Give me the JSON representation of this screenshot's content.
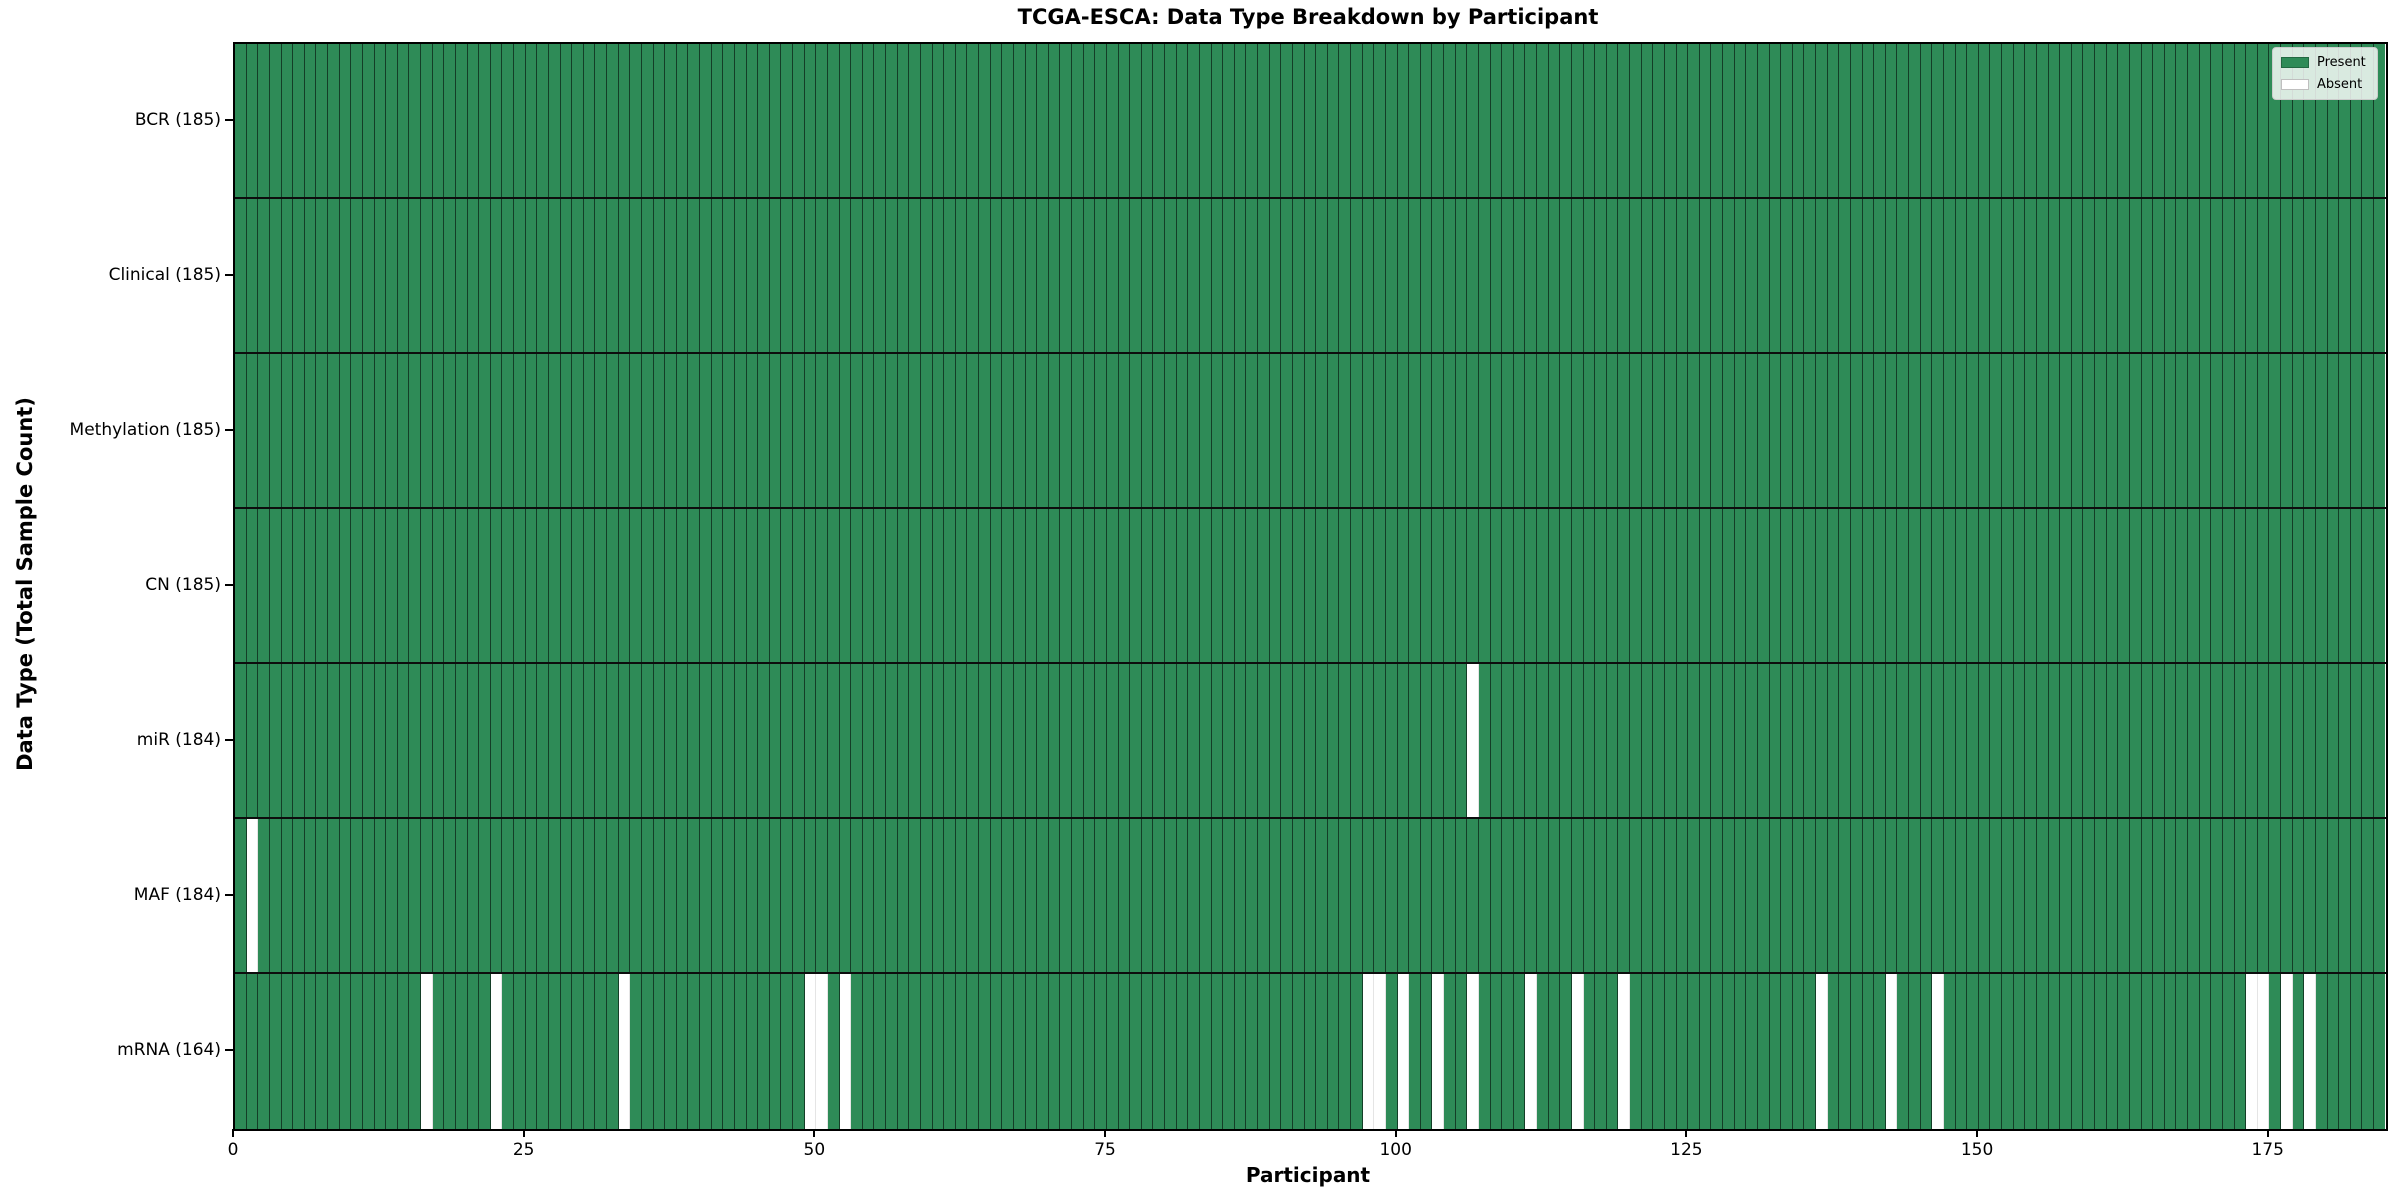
{
  "chart_data": {
    "type": "heatmap",
    "title": "TCGA-ESCA: Data Type Breakdown by Participant",
    "xlabel": "Participant",
    "ylabel": "Data Type (Total Sample Count)",
    "n_participants": 185,
    "x_ticks": [
      0,
      25,
      50,
      75,
      100,
      125,
      150,
      175
    ],
    "x_range": [
      0,
      185
    ],
    "grid": "cell-edges",
    "legend_position": "upper-right",
    "legend": [
      {
        "label": "Present",
        "color": "#2E8B57"
      },
      {
        "label": "Absent",
        "color": "#FFFFFF"
      }
    ],
    "colors": {
      "present": "#2E8B57",
      "absent": "#FFFFFF"
    },
    "rows": [
      {
        "label": "BCR (185)",
        "name": "BCR",
        "total_samples": 185,
        "absent_participants": []
      },
      {
        "label": "Clinical (185)",
        "name": "Clinical",
        "total_samples": 185,
        "absent_participants": []
      },
      {
        "label": "Methylation (185)",
        "name": "Methylation",
        "total_samples": 185,
        "absent_participants": []
      },
      {
        "label": "CN (185)",
        "name": "CN",
        "total_samples": 185,
        "absent_participants": []
      },
      {
        "label": "miR (184)",
        "name": "miR",
        "total_samples": 184,
        "absent_participants": [
          106
        ]
      },
      {
        "label": "MAF (184)",
        "name": "MAF",
        "total_samples": 184,
        "absent_participants": [
          1
        ]
      },
      {
        "label": "mRNA (164)",
        "name": "mRNA",
        "total_samples": 164,
        "absent_participants": [
          16,
          22,
          33,
          49,
          50,
          52,
          97,
          98,
          100,
          103,
          106,
          111,
          115,
          119,
          136,
          142,
          146,
          173,
          174,
          176,
          178
        ]
      }
    ]
  }
}
